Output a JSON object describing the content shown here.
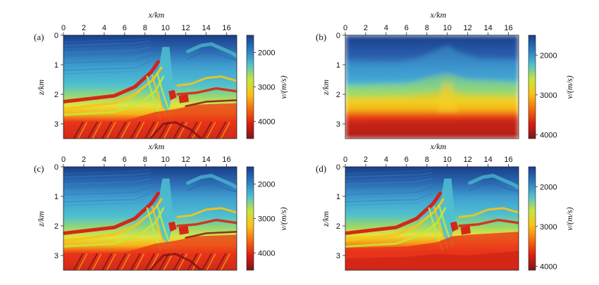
{
  "chart_data": [
    {
      "type": "heatmap",
      "panel_label": "(a)",
      "xlabel": "x/km",
      "ylabel": "z/km",
      "colorbar_label": "v/(m/s)",
      "x_ticks": [
        "0",
        "2",
        "4",
        "6",
        "8",
        "10",
        "12",
        "14",
        "16"
      ],
      "y_ticks": [
        "0",
        "1",
        "2",
        "3"
      ],
      "colorbar_ticks": [
        "2000",
        "3000",
        "4000"
      ],
      "xlim": [
        0,
        17
      ],
      "ylim": [
        0,
        3.5
      ],
      "clim": [
        1500,
        4500
      ],
      "style": "detailed"
    },
    {
      "type": "heatmap",
      "panel_label": "(b)",
      "xlabel": "x/km",
      "ylabel": "z/km",
      "colorbar_label": "v/(m/s)",
      "x_ticks": [
        "0",
        "2",
        "4",
        "6",
        "8",
        "10",
        "12",
        "14",
        "16"
      ],
      "y_ticks": [
        "0",
        "1",
        "2",
        "3"
      ],
      "colorbar_ticks": [
        "2000",
        "3000",
        "4000"
      ],
      "xlim": [
        0,
        17
      ],
      "ylim": [
        0,
        3.5
      ],
      "clim": [
        1500,
        4100
      ],
      "style": "smooth"
    },
    {
      "type": "heatmap",
      "panel_label": "(c)",
      "xlabel": "x/km",
      "ylabel": "z/km",
      "colorbar_label": "v/(m/s)",
      "x_ticks": [
        "0",
        "2",
        "4",
        "6",
        "8",
        "10",
        "12",
        "14",
        "16"
      ],
      "y_ticks": [
        "0",
        "1",
        "2",
        "3"
      ],
      "colorbar_ticks": [
        "2000",
        "3000",
        "4000"
      ],
      "xlim": [
        0,
        17
      ],
      "ylim": [
        0,
        3.5
      ],
      "clim": [
        1500,
        4500
      ],
      "style": "detailed"
    },
    {
      "type": "heatmap",
      "panel_label": "(d)",
      "xlabel": "x/km",
      "ylabel": "z/km",
      "colorbar_label": "v/(m/s)",
      "x_ticks": [
        "0",
        "2",
        "4",
        "6",
        "8",
        "10",
        "12",
        "14",
        "16"
      ],
      "y_ticks": [
        "0",
        "1",
        "2",
        "3"
      ],
      "colorbar_ticks": [
        "2000",
        "3000",
        "4000"
      ],
      "xlim": [
        0,
        17
      ],
      "ylim": [
        0,
        3.5
      ],
      "clim": [
        1500,
        4100
      ],
      "style": "inverted"
    }
  ],
  "colormap": [
    "#7f1516",
    "#d81e12",
    "#f56b10",
    "#f7c416",
    "#c7e63a",
    "#4fc0cf",
    "#2a7bbf",
    "#1a3e8a"
  ]
}
